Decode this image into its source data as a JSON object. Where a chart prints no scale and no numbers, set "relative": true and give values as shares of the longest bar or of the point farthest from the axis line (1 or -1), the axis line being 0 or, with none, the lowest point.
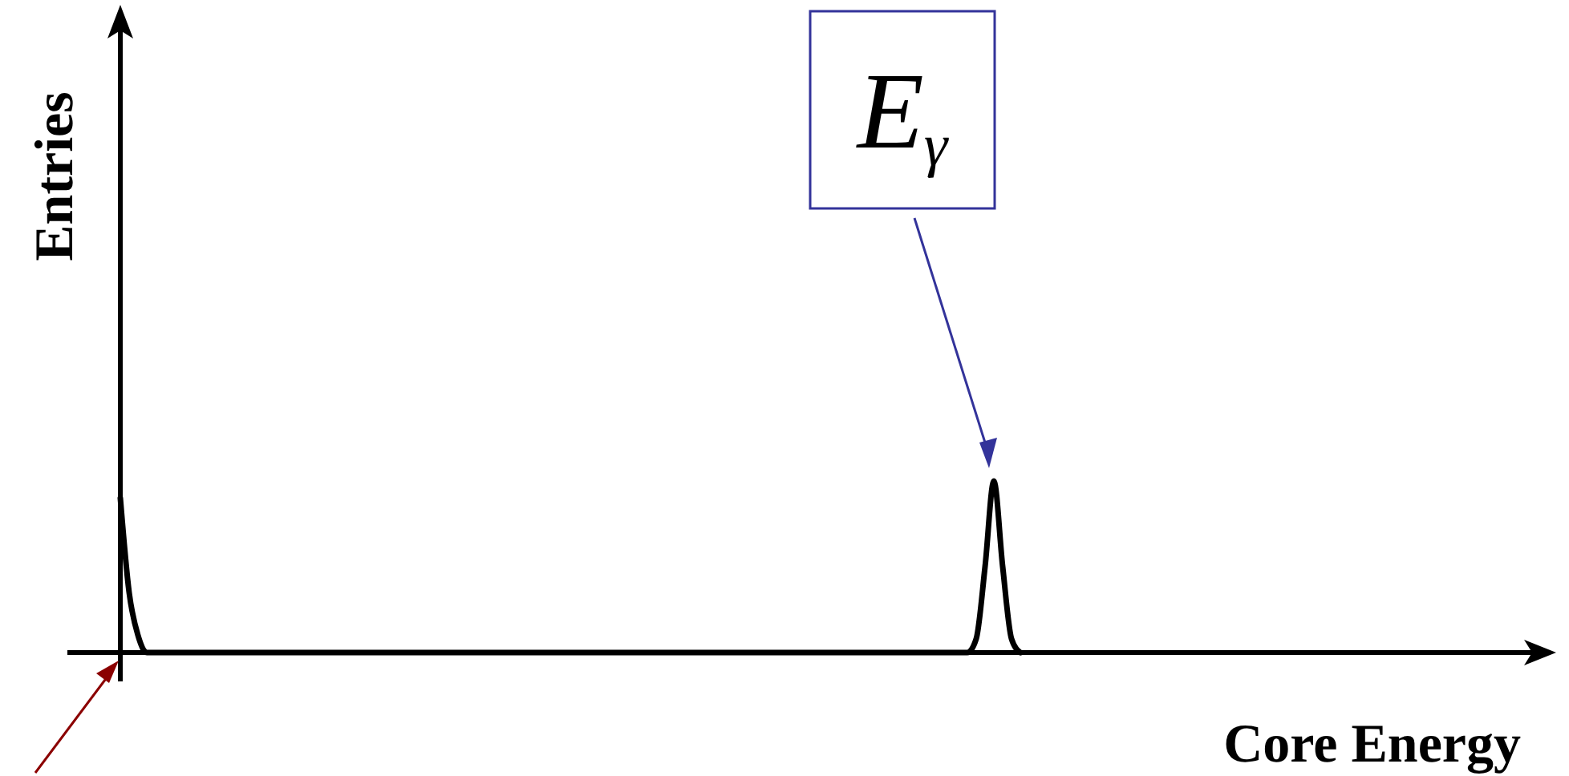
{
  "chart_data": {
    "type": "line",
    "relative": true,
    "xlabel": "Core Energy",
    "ylabel": "Entries",
    "categories": [
      null,
      null,
      null,
      null,
      null,
      null,
      null,
      null,
      null,
      null,
      null,
      null,
      null,
      null,
      null,
      null,
      null,
      null,
      null,
      null,
      null,
      null,
      null,
      null,
      null,
      null,
      null,
      null,
      null,
      null,
      null,
      null,
      null,
      null,
      null,
      null,
      null,
      null,
      null,
      null,
      null,
      null,
      null,
      null,
      null,
      null,
      null,
      null,
      null,
      null,
      null,
      null,
      null,
      null,
      null,
      null,
      null,
      null,
      null,
      null,
      null,
      null,
      null,
      null,
      null,
      null,
      null,
      null,
      null,
      null,
      null,
      null,
      null,
      null,
      null,
      null,
      null,
      null,
      null,
      null,
      null,
      null,
      null,
      null,
      null,
      null,
      null,
      null,
      null,
      null,
      null,
      null,
      null,
      null,
      null,
      null,
      null,
      null,
      null,
      null,
      null,
      null,
      null,
      null,
      null,
      null,
      null,
      null,
      null,
      null,
      null,
      null,
      null,
      null,
      null,
      null,
      null,
      null,
      null,
      null,
      null,
      null,
      null,
      null,
      null,
      null,
      null,
      null,
      null,
      null,
      null,
      null,
      null,
      null,
      null,
      null,
      null,
      null,
      null,
      null,
      null,
      null,
      null,
      null,
      null,
      null,
      null,
      null,
      null,
      null,
      null,
      null,
      null,
      null,
      null,
      null,
      null,
      null,
      null,
      null
    ],
    "series": [
      {
        "color": "#000000",
        "values": [
          0.9,
          0.35,
          0.1,
          0,
          0,
          0,
          0,
          0,
          0,
          0,
          0,
          0,
          0,
          0,
          0,
          0,
          0,
          0,
          0,
          0,
          0,
          0,
          0,
          0,
          0,
          0,
          0,
          0,
          0,
          0,
          0,
          0,
          0,
          0,
          0,
          0,
          0,
          0,
          0,
          0,
          0,
          0,
          0,
          0,
          0,
          0,
          0,
          0,
          0,
          0,
          0,
          0,
          0,
          0,
          0,
          0,
          0,
          0,
          0,
          0,
          0,
          0,
          0,
          0,
          0,
          0,
          0,
          0,
          0,
          0,
          0,
          0,
          0,
          0,
          0,
          0,
          0,
          0,
          0,
          0,
          0,
          0,
          0,
          0,
          0,
          0,
          0,
          0,
          0,
          0,
          0,
          0,
          0,
          0,
          0,
          0,
          0,
          0.08,
          0.5,
          1,
          0.5,
          0.08,
          0,
          null,
          null,
          null,
          null,
          null,
          null,
          null,
          null,
          null,
          null,
          null,
          null,
          null,
          null,
          null,
          null,
          null,
          null,
          null,
          null,
          null,
          null,
          null,
          null,
          null,
          null,
          null,
          null,
          null,
          null,
          null,
          null,
          null,
          null,
          null,
          null,
          null,
          null,
          null,
          null,
          null,
          null,
          null,
          null,
          null,
          null,
          null,
          null,
          null,
          null,
          null,
          null,
          null,
          null,
          null,
          null,
          null
        ]
      }
    ],
    "annotations": [
      "E$_{γ}$"
    ]
  }
}
